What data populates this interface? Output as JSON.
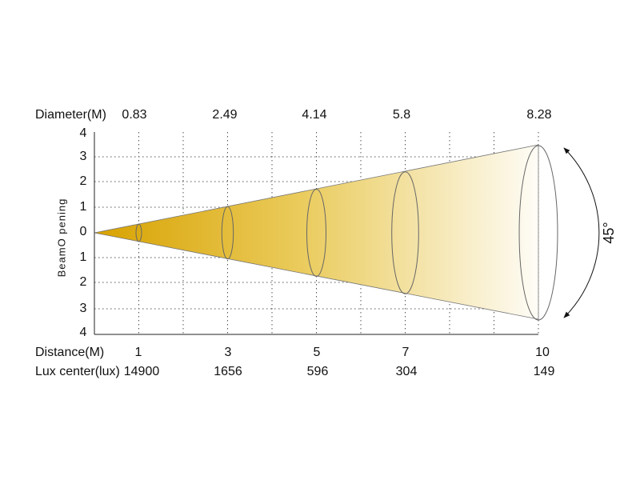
{
  "diameter": {
    "label": "Diameter(M)",
    "values": [
      "0.83",
      "2.49",
      "4.14",
      "5.8",
      "8.28"
    ]
  },
  "distance": {
    "label": "Distance(M)",
    "values": [
      "1",
      "3",
      "5",
      "7",
      "10"
    ]
  },
  "lux": {
    "label": "Lux center(lux)",
    "values": [
      "14900",
      "1656",
      "596",
      "304",
      "149"
    ]
  },
  "y_axis": {
    "label": "BeamO pening",
    "ticks": [
      "4",
      "3",
      "2",
      "1",
      "0",
      "1",
      "2",
      "3",
      "4"
    ]
  },
  "angle": "45°"
}
